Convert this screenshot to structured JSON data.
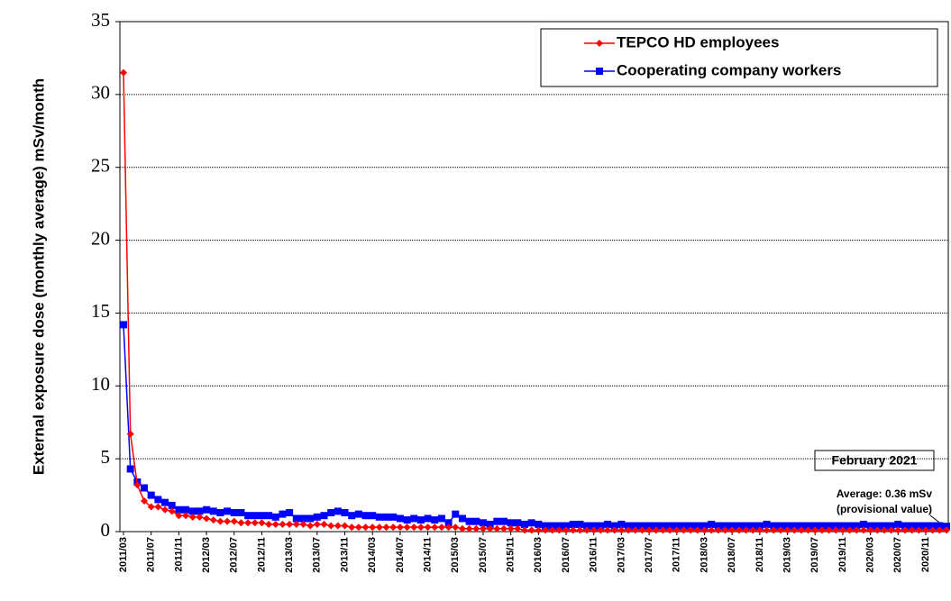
{
  "chart_data": {
    "type": "line",
    "y_label": "External exposure dose (monthly average) mSv/month",
    "categories": [
      "2011/03",
      null,
      null,
      null,
      "2011/07",
      null,
      null,
      null,
      "2011/11",
      null,
      null,
      null,
      "2012/03",
      null,
      null,
      null,
      "2012/07",
      null,
      null,
      null,
      "2012/11",
      null,
      null,
      null,
      "2013/03",
      null,
      null,
      null,
      "2013/07",
      null,
      null,
      null,
      "2013/11",
      null,
      null,
      null,
      "2014/03",
      null,
      null,
      null,
      "2014/07",
      null,
      null,
      null,
      "2014/11",
      null,
      null,
      null,
      "2015/03",
      null,
      null,
      null,
      "2015/07",
      null,
      null,
      null,
      "2015/11",
      null,
      null,
      null,
      "2016/03",
      null,
      null,
      null,
      "2016/07",
      null,
      null,
      null,
      "2016/11",
      null,
      null,
      null,
      "2017/03",
      null,
      null,
      null,
      "2017/07",
      null,
      null,
      null,
      "2017/11",
      null,
      null,
      null,
      "2018/03",
      null,
      null,
      null,
      "2018/07",
      null,
      null,
      null,
      "2018/11",
      null,
      null,
      null,
      "2019/03",
      null,
      null,
      null,
      "2019/07",
      null,
      null,
      null,
      "2019/11",
      null,
      null,
      null,
      "2020/03",
      null,
      null,
      null,
      "2020/07",
      null,
      null,
      null,
      "2020/11",
      null,
      null,
      null
    ],
    "series": [
      {
        "name": "TEPCO HD employees",
        "color": "#ff0000",
        "marker": "diamond",
        "values": [
          31.5,
          6.7,
          3.2,
          2.1,
          1.7,
          1.7,
          1.5,
          1.4,
          1.1,
          1.1,
          1.0,
          1.0,
          0.9,
          0.8,
          0.7,
          0.7,
          0.7,
          0.6,
          0.6,
          0.6,
          0.6,
          0.5,
          0.5,
          0.5,
          0.5,
          0.5,
          0.5,
          0.4,
          0.5,
          0.5,
          0.4,
          0.4,
          0.4,
          0.3,
          0.3,
          0.3,
          0.3,
          0.3,
          0.3,
          0.3,
          0.3,
          0.3,
          0.3,
          0.3,
          0.3,
          0.3,
          0.3,
          0.3,
          0.3,
          0.2,
          0.2,
          0.2,
          0.2,
          0.2,
          0.2,
          0.2,
          0.2,
          0.2,
          0.1,
          0.1,
          0.1,
          0.1,
          0.1,
          0.1,
          0.1,
          0.1,
          0.1,
          0.1,
          0.1,
          0.1,
          0.1,
          0.1,
          0.1,
          0.1,
          0.1,
          0.1,
          0.1,
          0.1,
          0.1,
          0.1,
          0.1,
          0.1,
          0.1,
          0.1,
          0.1,
          0.1,
          0.1,
          0.1,
          0.1,
          0.1,
          0.1,
          0.1,
          0.1,
          0.1,
          0.1,
          0.1,
          0.1,
          0.1,
          0.1,
          0.1,
          0.1,
          0.1,
          0.1,
          0.1,
          0.1,
          0.1,
          0.1,
          0.1,
          0.1,
          0.1,
          0.1,
          0.1,
          0.1,
          0.1,
          0.1,
          0.1,
          0.1,
          0.1,
          0.1,
          0.1
        ]
      },
      {
        "name": "Cooperating company workers",
        "color": "#0000ff",
        "marker": "square",
        "values": [
          14.2,
          4.3,
          3.4,
          3.0,
          2.5,
          2.2,
          2.0,
          1.8,
          1.5,
          1.5,
          1.4,
          1.4,
          1.5,
          1.4,
          1.3,
          1.4,
          1.3,
          1.3,
          1.1,
          1.1,
          1.1,
          1.1,
          1.0,
          1.2,
          1.3,
          0.9,
          0.9,
          0.9,
          1.0,
          1.1,
          1.3,
          1.4,
          1.3,
          1.1,
          1.2,
          1.1,
          1.1,
          1.0,
          1.0,
          1.0,
          0.9,
          0.8,
          0.9,
          0.8,
          0.9,
          0.8,
          0.9,
          0.6,
          1.2,
          0.9,
          0.7,
          0.7,
          0.6,
          0.5,
          0.7,
          0.7,
          0.6,
          0.6,
          0.5,
          0.6,
          0.5,
          0.4,
          0.4,
          0.4,
          0.4,
          0.5,
          0.5,
          0.4,
          0.4,
          0.4,
          0.5,
          0.4,
          0.5,
          0.4,
          0.4,
          0.4,
          0.4,
          0.4,
          0.4,
          0.4,
          0.4,
          0.4,
          0.4,
          0.4,
          0.4,
          0.5,
          0.4,
          0.4,
          0.4,
          0.4,
          0.4,
          0.4,
          0.4,
          0.5,
          0.4,
          0.4,
          0.4,
          0.4,
          0.4,
          0.4,
          0.4,
          0.4,
          0.4,
          0.4,
          0.4,
          0.4,
          0.4,
          0.5,
          0.4,
          0.4,
          0.4,
          0.4,
          0.5,
          0.4,
          0.4,
          0.4,
          0.4,
          0.4,
          0.4,
          0.36
        ]
      }
    ],
    "ylim": [
      0,
      35
    ],
    "yticks": [
      0,
      5,
      10,
      15,
      20,
      25,
      30,
      35
    ],
    "grid": true,
    "legend": "upper right",
    "annotations": [
      "February 2021",
      "Average: 0.36 mSv",
      "(provisional value)"
    ]
  }
}
